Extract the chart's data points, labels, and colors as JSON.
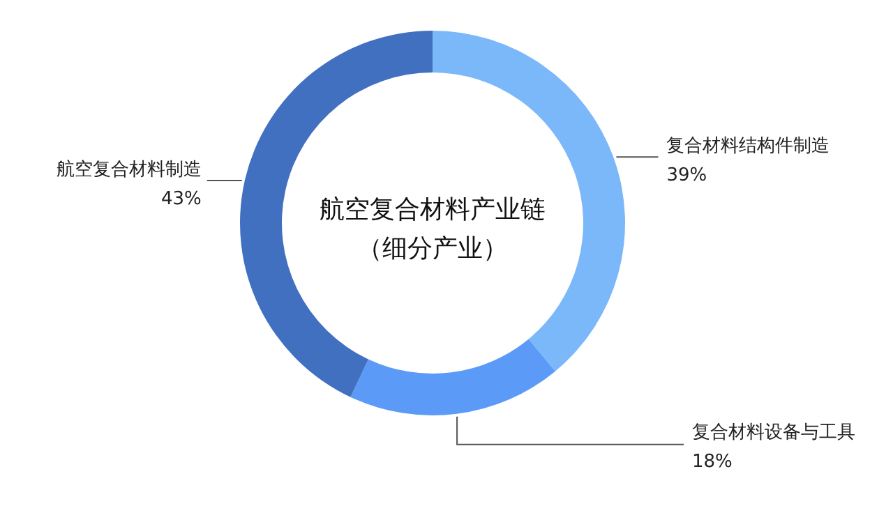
{
  "chart_data": {
    "type": "donut",
    "title": "航空复合材料产业链",
    "subtitle": "（细分产业）",
    "categories": [
      "复合材料结构件制造",
      "复合材料设备与工具",
      "航空复合材料制造"
    ],
    "values": [
      39,
      18,
      43
    ],
    "colors": [
      "#7bb8fa",
      "#5b9bf7",
      "#4270c1"
    ],
    "value_labels": [
      "39%",
      "18%",
      "43%"
    ],
    "legend": false
  }
}
